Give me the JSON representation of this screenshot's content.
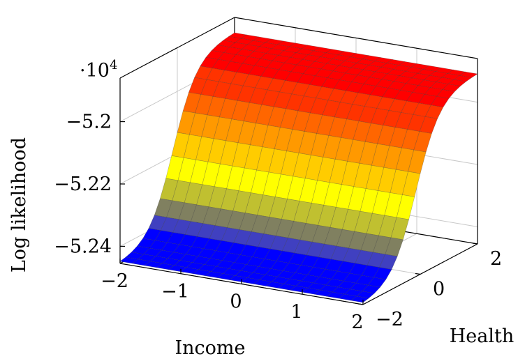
{
  "chart_data": {
    "type": "surface",
    "title": "",
    "xlabel": "Income",
    "ylabel": "Health",
    "zlabel": "Log likelihood",
    "z_scale_label": "·10",
    "z_scale_exponent": "4",
    "z_scale_factor": 10000,
    "xlim": [
      -2,
      2
    ],
    "ylim": [
      -2,
      2
    ],
    "zlim": [
      -5.2455,
      -5.186
    ],
    "x_ticks": [
      -2,
      -1,
      0,
      1,
      2
    ],
    "x_tick_labels": [
      "−2",
      "−1",
      "0",
      "1",
      "2"
    ],
    "y_ticks": [
      -2,
      0,
      2
    ],
    "y_tick_labels": [
      "−2",
      "0",
      "2"
    ],
    "z_ticks": [
      -5.24,
      -5.22,
      -5.2
    ],
    "z_tick_labels": [
      "−5.24",
      "−5.22",
      "−5.2"
    ],
    "grid": true,
    "colormap": [
      "#0000ff",
      "#4040c0",
      "#808060",
      "#c0c030",
      "#ffff00",
      "#ffcc00",
      "#ff9900",
      "#ff6600",
      "#ff3300",
      "#ff0000"
    ],
    "surface": {
      "income_grid_points": 21,
      "health_grid_points": 21,
      "z_min": -5.2455,
      "z_max": -5.1906,
      "transition_center_health": -0.15,
      "transition_width_health": 0.42,
      "income_slope": -0.0012
    }
  }
}
